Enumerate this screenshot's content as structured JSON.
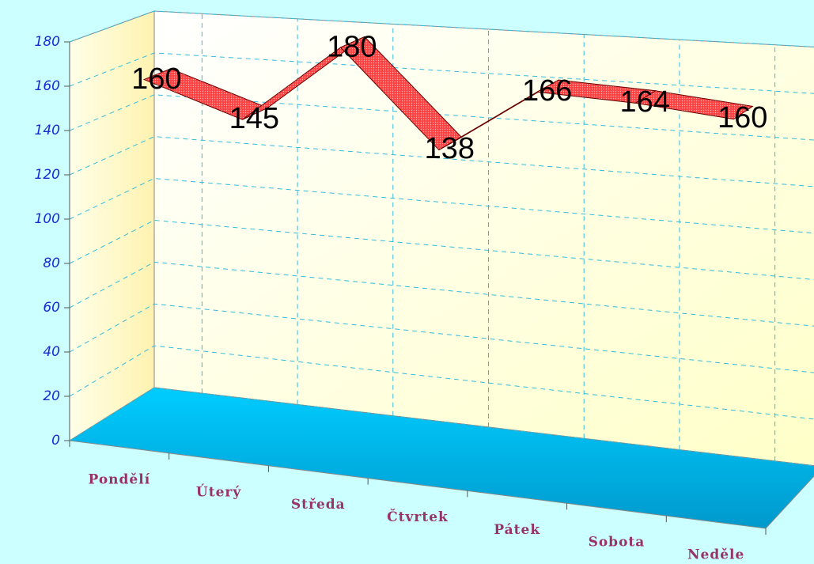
{
  "chart_data": {
    "type": "line3d",
    "categories": [
      "Pondělí",
      "Úterý",
      "Středa",
      "Čtvrtek",
      "Pátek",
      "Sobota",
      "Neděle"
    ],
    "values": [
      160,
      145,
      180,
      138,
      166,
      164,
      160
    ],
    "color": "#ff3b3b",
    "ylim": [
      0,
      180
    ],
    "yticks": [
      0,
      20,
      40,
      60,
      80,
      100,
      120,
      140,
      160,
      180
    ],
    "grid": true
  }
}
